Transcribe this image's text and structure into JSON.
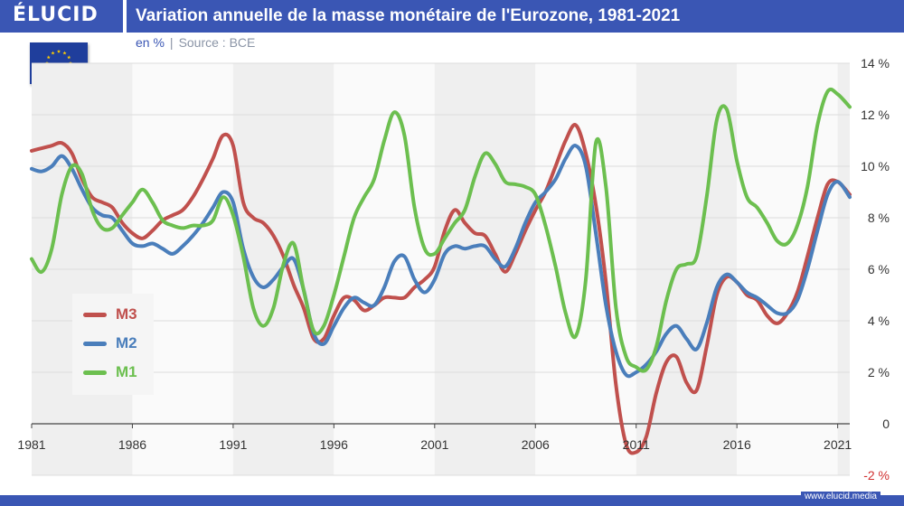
{
  "header": {
    "logo": "ÉLUCID",
    "title": "Variation annuelle de la masse monétaire de l'Eurozone, 1981-2021"
  },
  "subtitle": {
    "unit": "en %",
    "separator": "|",
    "source": "Source : BCE"
  },
  "footer": {
    "url": "www.elucid.media"
  },
  "colors": {
    "brand": "#3a56b4",
    "M3": "#c0504d",
    "M2": "#4a7ebb",
    "M1": "#6cbf4f",
    "negative_tick": "#d03030"
  },
  "chart_data": {
    "type": "line",
    "xlim": [
      1981,
      2021.6
    ],
    "ylim": [
      -2,
      14
    ],
    "x_ticks": [
      1981,
      1986,
      1991,
      1996,
      2001,
      2006,
      2011,
      2016,
      2021
    ],
    "x_tick_labels": [
      "1981",
      "1986",
      "1991",
      "1996",
      "2001",
      "2006",
      "2011",
      "2016",
      "2021"
    ],
    "y_ticks": [
      -2,
      0,
      2,
      4,
      6,
      8,
      10,
      12,
      14
    ],
    "y_tick_labels": [
      "-2 %",
      "0",
      "2 %",
      "4 %",
      "6 %",
      "8 %",
      "10 %",
      "12 %",
      "14 %"
    ],
    "grid": "horizontal",
    "legend_position": "left-middle",
    "series": [
      {
        "name": "M3",
        "color": "#c0504d",
        "x": [
          1981,
          1981.5,
          1982,
          1982.5,
          1983,
          1983.5,
          1984,
          1984.5,
          1985,
          1985.5,
          1986,
          1986.5,
          1987,
          1987.5,
          1988,
          1988.5,
          1989,
          1989.5,
          1990,
          1990.5,
          1991,
          1991.5,
          1992,
          1992.5,
          1993,
          1993.5,
          1994,
          1994.5,
          1995,
          1995.5,
          1996,
          1996.5,
          1997,
          1997.5,
          1998,
          1998.5,
          1999,
          1999.5,
          2000,
          2000.5,
          2001,
          2001.5,
          2002,
          2002.5,
          2003,
          2003.5,
          2004,
          2004.5,
          2005,
          2005.5,
          2006,
          2006.5,
          2007,
          2007.5,
          2008,
          2008.5,
          2009,
          2009.5,
          2010,
          2010.5,
          2011,
          2011.5,
          2012,
          2012.5,
          2013,
          2013.5,
          2014,
          2014.5,
          2015,
          2015.5,
          2016,
          2016.5,
          2017,
          2017.5,
          2018,
          2018.5,
          2019,
          2019.5,
          2020,
          2020.5,
          2021,
          2021.6
        ],
        "values": [
          10.6,
          10.7,
          10.8,
          10.9,
          10.5,
          9.5,
          8.8,
          8.6,
          8.4,
          7.8,
          7.4,
          7.2,
          7.5,
          7.9,
          8.1,
          8.3,
          8.8,
          9.5,
          10.3,
          11.2,
          10.8,
          8.6,
          8.0,
          7.8,
          7.3,
          6.5,
          5.4,
          4.5,
          3.3,
          3.3,
          4.2,
          4.9,
          4.8,
          4.4,
          4.6,
          4.9,
          4.9,
          4.9,
          5.3,
          5.6,
          6.1,
          7.5,
          8.3,
          7.8,
          7.4,
          7.3,
          6.6,
          5.9,
          6.6,
          7.5,
          8.3,
          9.0,
          10.0,
          11.0,
          11.6,
          10.5,
          8.5,
          5.5,
          1.5,
          -0.8,
          -1.1,
          -0.5,
          1.2,
          2.4,
          2.6,
          1.6,
          1.3,
          3.0,
          5.0,
          5.7,
          5.5,
          5.0,
          4.8,
          4.2,
          3.9,
          4.3,
          5.1,
          6.5,
          8.0,
          9.3,
          9.4,
          8.9
        ]
      },
      {
        "name": "M2",
        "color": "#4a7ebb",
        "x": [
          1981,
          1981.5,
          1982,
          1982.5,
          1983,
          1983.5,
          1984,
          1984.5,
          1985,
          1985.5,
          1986,
          1986.5,
          1987,
          1987.5,
          1988,
          1988.5,
          1989,
          1989.5,
          1990,
          1990.5,
          1991,
          1991.5,
          1992,
          1992.5,
          1993,
          1993.5,
          1994,
          1994.5,
          1995,
          1995.5,
          1996,
          1996.5,
          1997,
          1997.5,
          1998,
          1998.5,
          1999,
          1999.5,
          2000,
          2000.5,
          2001,
          2001.5,
          2002,
          2002.5,
          2003,
          2003.5,
          2004,
          2004.5,
          2005,
          2005.5,
          2006,
          2006.5,
          2007,
          2007.5,
          2008,
          2008.5,
          2009,
          2009.5,
          2010,
          2010.5,
          2011,
          2011.5,
          2012,
          2012.5,
          2013,
          2013.5,
          2014,
          2014.5,
          2015,
          2015.5,
          2016,
          2016.5,
          2017,
          2017.5,
          2018,
          2018.5,
          2019,
          2019.5,
          2020,
          2020.5,
          2021,
          2021.6
        ],
        "values": [
          9.9,
          9.8,
          10.0,
          10.4,
          9.9,
          9.1,
          8.4,
          8.1,
          8.0,
          7.5,
          7.0,
          6.9,
          7.0,
          6.8,
          6.6,
          6.9,
          7.3,
          7.8,
          8.4,
          9.0,
          8.6,
          6.8,
          5.7,
          5.3,
          5.6,
          6.1,
          6.4,
          5.2,
          3.5,
          3.1,
          3.8,
          4.5,
          4.9,
          4.7,
          4.6,
          5.3,
          6.3,
          6.5,
          5.6,
          5.1,
          5.6,
          6.6,
          6.9,
          6.8,
          6.9,
          6.9,
          6.4,
          6.1,
          6.8,
          7.8,
          8.6,
          9.0,
          9.5,
          10.3,
          10.8,
          10.0,
          7.4,
          4.6,
          2.8,
          1.9,
          2.0,
          2.3,
          2.8,
          3.5,
          3.8,
          3.3,
          2.9,
          3.9,
          5.3,
          5.8,
          5.5,
          5.1,
          4.9,
          4.6,
          4.3,
          4.3,
          4.8,
          6.0,
          7.5,
          8.9,
          9.4,
          8.8
        ]
      },
      {
        "name": "M1",
        "color": "#6cbf4f",
        "x": [
          1981,
          1981.5,
          1982,
          1982.5,
          1983,
          1983.5,
          1984,
          1984.5,
          1985,
          1985.5,
          1986,
          1986.5,
          1987,
          1987.5,
          1988,
          1988.5,
          1989,
          1989.5,
          1990,
          1990.5,
          1991,
          1991.5,
          1992,
          1992.5,
          1993,
          1993.5,
          1994,
          1994.5,
          1995,
          1995.5,
          1996,
          1996.5,
          1997,
          1997.5,
          1998,
          1998.5,
          1999,
          1999.5,
          2000,
          2000.5,
          2001,
          2001.5,
          2002,
          2002.5,
          2003,
          2003.5,
          2004,
          2004.5,
          2005,
          2005.5,
          2006,
          2006.5,
          2007,
          2007.5,
          2008,
          2008.5,
          2009,
          2009.5,
          2010,
          2010.5,
          2011,
          2011.5,
          2012,
          2012.5,
          2013,
          2013.5,
          2014,
          2014.5,
          2015,
          2015.5,
          2016,
          2016.5,
          2017,
          2017.5,
          2018,
          2018.5,
          2019,
          2019.5,
          2020,
          2020.5,
          2021,
          2021.6
        ],
        "values": [
          6.4,
          5.9,
          6.8,
          8.9,
          10.0,
          9.7,
          8.3,
          7.6,
          7.6,
          8.1,
          8.6,
          9.1,
          8.6,
          7.9,
          7.7,
          7.6,
          7.7,
          7.7,
          7.9,
          8.8,
          8.1,
          6.5,
          4.5,
          3.8,
          4.5,
          6.2,
          7.0,
          5.2,
          3.6,
          3.8,
          5.0,
          6.5,
          8.0,
          8.8,
          9.5,
          11.0,
          12.1,
          11.2,
          8.4,
          6.8,
          6.6,
          7.2,
          7.8,
          8.3,
          9.6,
          10.5,
          10.1,
          9.4,
          9.3,
          9.2,
          8.9,
          7.7,
          6.1,
          4.3,
          3.4,
          5.6,
          10.9,
          9.2,
          4.5,
          2.6,
          2.2,
          2.1,
          3.0,
          4.8,
          6.0,
          6.2,
          6.5,
          8.8,
          11.8,
          12.2,
          10.2,
          8.8,
          8.4,
          7.8,
          7.1,
          7.0,
          7.7,
          9.2,
          11.6,
          12.9,
          12.8,
          12.3
        ]
      }
    ]
  }
}
